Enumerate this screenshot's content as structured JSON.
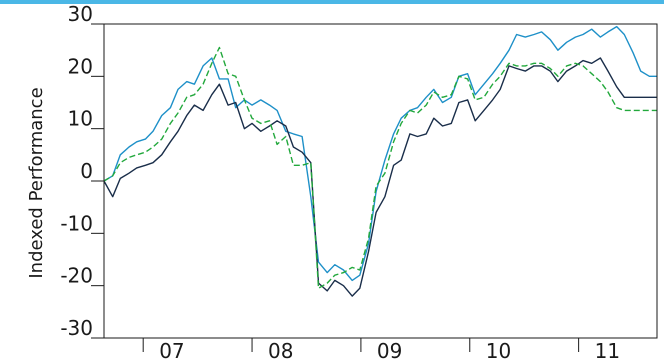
{
  "chart_data": {
    "type": "line",
    "title": "",
    "xlabel": "",
    "ylabel": "Indexed Performance",
    "ylim": [
      -30,
      30
    ],
    "xlim": [
      2006.64,
      2011.72
    ],
    "yticks": [
      30,
      20,
      10,
      0,
      -10,
      -20,
      -30
    ],
    "ytick_labels": [
      "30",
      "20",
      "10",
      "0",
      "-10",
      "-20",
      "-30"
    ],
    "xtick_positions": [
      2007.0,
      2008.0,
      2009.0,
      2010.0,
      2011.0
    ],
    "xtick_labels": [
      "07",
      "08",
      "09",
      "10",
      "11"
    ],
    "grid": false,
    "legend": "none",
    "x": [
      2006.64,
      2006.72,
      2006.79,
      2006.87,
      2006.94,
      2007.02,
      2007.09,
      2007.17,
      2007.25,
      2007.32,
      2007.4,
      2007.47,
      2007.55,
      2007.63,
      2007.7,
      2007.78,
      2007.85,
      2007.93,
      2008.0,
      2008.08,
      2008.16,
      2008.23,
      2008.31,
      2008.38,
      2008.46,
      2008.54,
      2008.61,
      2008.69,
      2008.76,
      2008.84,
      2008.92,
      2008.99,
      2009.07,
      2009.14,
      2009.22,
      2009.3,
      2009.37,
      2009.45,
      2009.52,
      2009.6,
      2009.67,
      2009.75,
      2009.83,
      2009.9,
      2009.98,
      2010.05,
      2010.13,
      2010.21,
      2010.28,
      2010.36,
      2010.43,
      2010.51,
      2010.59,
      2010.66,
      2010.74,
      2010.81,
      2010.89,
      2010.97,
      2011.04,
      2011.12,
      2011.2,
      2011.27,
      2011.35,
      2011.42,
      2011.5,
      2011.57,
      2011.65,
      2011.72
    ],
    "series": [
      {
        "color": "#1e90c8",
        "dash": "solid",
        "values": [
          0.0,
          1.0,
          5.0,
          6.5,
          7.5,
          8.0,
          9.5,
          12.5,
          14.0,
          17.5,
          19.0,
          18.5,
          22.0,
          23.5,
          19.5,
          19.5,
          14.0,
          15.5,
          14.5,
          15.5,
          14.5,
          13.5,
          9.5,
          9.0,
          8.5,
          -3.0,
          -15.5,
          -17.5,
          -16.0,
          -17.0,
          -19.0,
          -18.0,
          -12.0,
          -2.0,
          4.0,
          9.0,
          12.0,
          13.5,
          14.0,
          16.0,
          17.5,
          15.0,
          16.0,
          20.0,
          20.5,
          16.5,
          18.5,
          20.5,
          22.5,
          25.0,
          28.0,
          27.5,
          28.0,
          28.5,
          27.0,
          25.0,
          26.5,
          27.5,
          28.0,
          29.0,
          27.5,
          28.5,
          29.5,
          28.0,
          24.5,
          21.0,
          20.0,
          20.0
        ]
      },
      {
        "color": "#1a2e4a",
        "dash": "solid",
        "values": [
          0.0,
          -3.0,
          0.5,
          1.5,
          2.5,
          3.0,
          3.5,
          5.0,
          7.5,
          9.5,
          12.5,
          14.5,
          13.5,
          16.5,
          18.5,
          14.5,
          15.0,
          10.0,
          11.0,
          9.5,
          10.5,
          11.5,
          10.5,
          6.5,
          5.5,
          3.5,
          -19.5,
          -21.0,
          -19.0,
          -20.0,
          -22.0,
          -20.5,
          -13.5,
          -6.0,
          -3.0,
          3.0,
          4.0,
          9.0,
          8.5,
          9.0,
          12.0,
          10.5,
          11.0,
          15.0,
          15.5,
          11.5,
          13.5,
          15.5,
          17.5,
          22.0,
          21.5,
          21.0,
          22.0,
          22.0,
          21.0,
          19.0,
          21.0,
          22.0,
          23.0,
          22.5,
          23.5,
          21.0,
          18.0,
          16.0,
          16.0,
          16.0,
          16.0,
          16.0
        ]
      },
      {
        "color": "#22a83c",
        "dash": "dashed",
        "values": [
          0.0,
          1.0,
          3.5,
          4.5,
          5.0,
          5.5,
          6.5,
          8.0,
          11.0,
          13.0,
          16.0,
          16.5,
          18.5,
          22.5,
          25.5,
          20.5,
          20.0,
          15.5,
          12.0,
          11.0,
          11.5,
          7.0,
          8.5,
          3.0,
          3.0,
          3.5,
          -20.5,
          -19.5,
          -18.0,
          -17.5,
          -16.5,
          -17.0,
          -11.0,
          -1.0,
          1.5,
          7.5,
          11.0,
          13.5,
          13.0,
          14.5,
          17.0,
          16.0,
          16.5,
          20.0,
          19.5,
          15.5,
          16.0,
          18.5,
          20.0,
          22.5,
          22.0,
          22.0,
          22.5,
          22.5,
          21.5,
          20.0,
          22.0,
          22.5,
          22.0,
          20.5,
          19.0,
          17.0,
          14.0,
          13.5,
          13.5,
          13.5,
          13.5,
          13.5
        ]
      }
    ]
  },
  "style": {
    "top_rule_color": "#4ab7e6",
    "frame_color": "#1a1a1a"
  }
}
